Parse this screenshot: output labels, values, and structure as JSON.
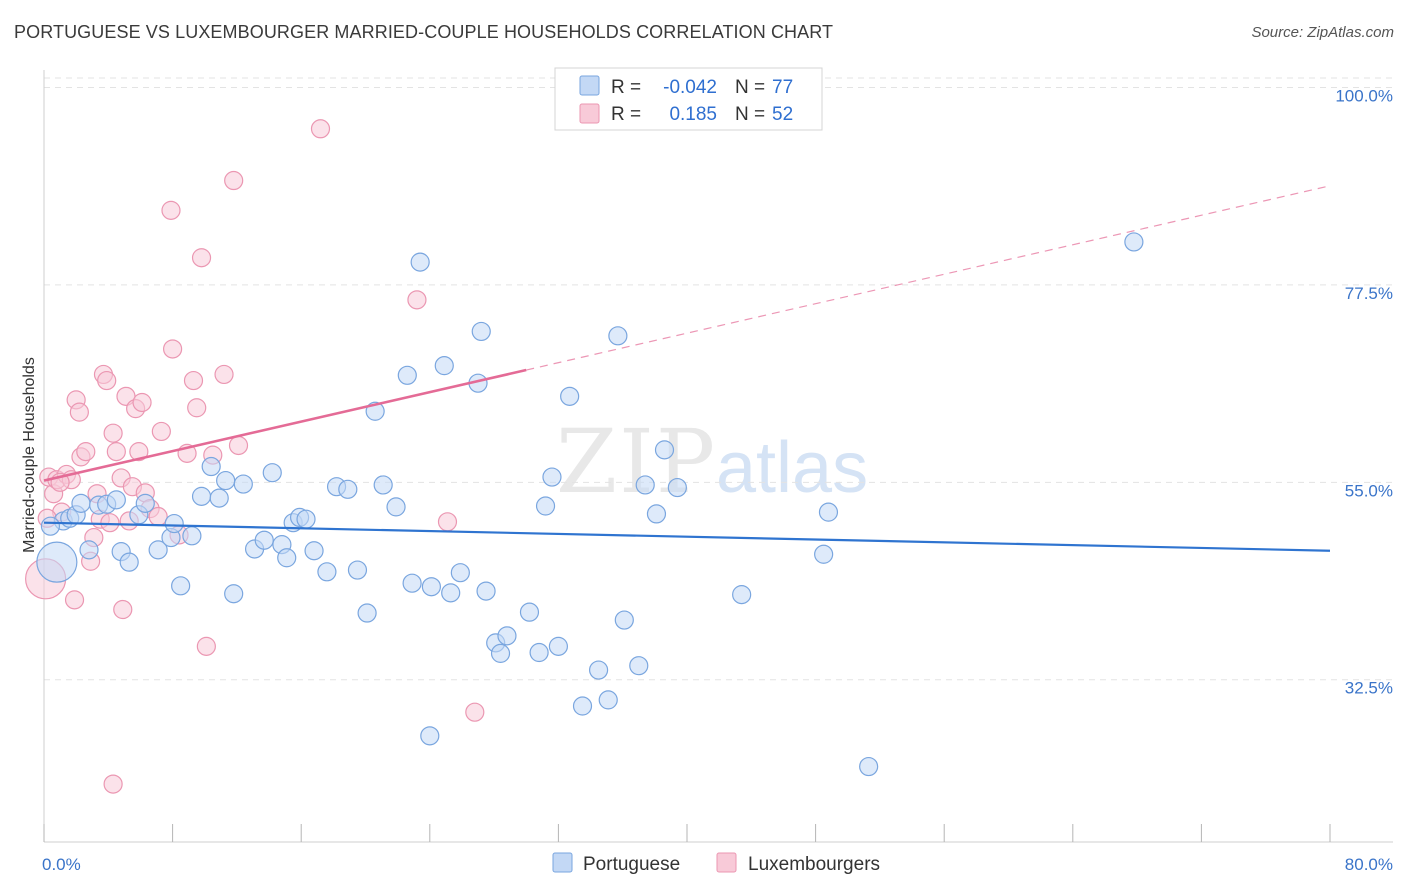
{
  "header": {
    "title": "PORTUGUESE VS LUXEMBOURGER MARRIED-COUPLE HOUSEHOLDS CORRELATION CHART",
    "source": "Source: ZipAtlas.com"
  },
  "watermark": {
    "zip": "ZIP",
    "atlas": "atlas"
  },
  "colors": {
    "portuguese_fill": "#c3d8f5",
    "portuguese_stroke": "#7aa6df",
    "portuguese_line": "#2f74d0",
    "luxembourger_fill": "#f8cad8",
    "luxembourger_stroke": "#eb97b2",
    "luxembourger_line": "#e46b96",
    "axis_label": "#3a74c9",
    "grid": "#e3e3e3"
  },
  "legend": {
    "r_label": "R =",
    "n_label": "N =",
    "rows": [
      {
        "series": "Portuguese",
        "r": "-0.042",
        "n": "77"
      },
      {
        "series": "Luxembourgers",
        "r": "0.185",
        "n": "52"
      }
    ]
  },
  "chart_data": {
    "type": "scatter",
    "title": "PORTUGUESE VS LUXEMBOURGER MARRIED-COUPLE HOUSEHOLDS CORRELATION CHART",
    "xlabel": "",
    "ylabel": "Married-couple Households",
    "xlim": [
      0,
      80
    ],
    "ylim": [
      14,
      102
    ],
    "x_tick_labels": [
      "0.0%",
      "80.0%"
    ],
    "y_ticks": [
      32.5,
      55.0,
      77.5,
      100.0
    ],
    "y_tick_labels": [
      "32.5%",
      "55.0%",
      "77.5%",
      "100.0%"
    ],
    "grid": true,
    "legend_position": "top-center",
    "series": [
      {
        "name": "Portuguese",
        "trend": {
          "x": [
            0,
            80
          ],
          "y": [
            50.4,
            47.2
          ],
          "style": "solid"
        },
        "points": [
          [
            0.8,
            45.9
          ],
          [
            1.2,
            50.6
          ],
          [
            1.6,
            50.9
          ],
          [
            2.0,
            51.3
          ],
          [
            2.3,
            52.6
          ],
          [
            2.8,
            47.3
          ],
          [
            3.4,
            52.4
          ],
          [
            3.9,
            52.5
          ],
          [
            4.5,
            53.0
          ],
          [
            4.8,
            47.1
          ],
          [
            5.3,
            45.9
          ],
          [
            5.9,
            51.3
          ],
          [
            6.3,
            52.6
          ],
          [
            7.1,
            47.3
          ],
          [
            7.9,
            48.7
          ],
          [
            8.1,
            50.3
          ],
          [
            8.5,
            43.2
          ],
          [
            9.2,
            48.9
          ],
          [
            9.8,
            53.4
          ],
          [
            10.4,
            56.8
          ],
          [
            10.9,
            53.2
          ],
          [
            11.3,
            55.2
          ],
          [
            11.8,
            42.3
          ],
          [
            12.4,
            54.8
          ],
          [
            13.1,
            47.4
          ],
          [
            13.7,
            48.4
          ],
          [
            14.2,
            56.1
          ],
          [
            14.8,
            47.9
          ],
          [
            15.1,
            46.4
          ],
          [
            15.5,
            50.4
          ],
          [
            15.9,
            51.0
          ],
          [
            16.3,
            50.8
          ],
          [
            16.8,
            47.2
          ],
          [
            17.6,
            44.8
          ],
          [
            18.2,
            54.5
          ],
          [
            18.9,
            54.2
          ],
          [
            19.5,
            45.0
          ],
          [
            20.1,
            40.1
          ],
          [
            20.6,
            63.1
          ],
          [
            21.1,
            54.7
          ],
          [
            21.9,
            52.2
          ],
          [
            22.6,
            67.2
          ],
          [
            22.9,
            43.5
          ],
          [
            23.4,
            80.1
          ],
          [
            24.1,
            43.1
          ],
          [
            24.9,
            68.3
          ],
          [
            25.3,
            42.4
          ],
          [
            25.9,
            44.7
          ],
          [
            27.0,
            66.3
          ],
          [
            27.2,
            72.2
          ],
          [
            27.5,
            42.6
          ],
          [
            28.1,
            36.7
          ],
          [
            28.4,
            35.5
          ],
          [
            28.8,
            37.5
          ],
          [
            30.2,
            40.2
          ],
          [
            30.8,
            35.6
          ],
          [
            31.2,
            52.3
          ],
          [
            31.6,
            55.6
          ],
          [
            32.0,
            36.3
          ],
          [
            32.7,
            64.8
          ],
          [
            33.5,
            29.5
          ],
          [
            34.5,
            33.6
          ],
          [
            35.1,
            30.2
          ],
          [
            35.7,
            71.7
          ],
          [
            36.1,
            39.3
          ],
          [
            37.0,
            34.1
          ],
          [
            37.4,
            54.7
          ],
          [
            38.1,
            51.4
          ],
          [
            38.6,
            58.7
          ],
          [
            39.4,
            54.4
          ],
          [
            24.0,
            26.1
          ],
          [
            43.4,
            42.2
          ],
          [
            48.5,
            46.8
          ],
          [
            48.8,
            51.6
          ],
          [
            51.3,
            22.6
          ],
          [
            67.8,
            82.4
          ],
          [
            0.4,
            50.0
          ]
        ]
      },
      {
        "name": "Luxembourgers",
        "trend": {
          "x": [
            0,
            30
          ],
          "y": [
            55.2,
            67.8
          ],
          "style": "solid",
          "extension": {
            "x": [
              30,
              80
            ],
            "y": [
              67.8,
              88.8
            ],
            "style": "dashed"
          }
        },
        "points": [
          [
            0.1,
            44.0
          ],
          [
            0.3,
            55.6
          ],
          [
            0.6,
            53.7
          ],
          [
            0.8,
            55.3
          ],
          [
            1.1,
            51.6
          ],
          [
            1.4,
            55.9
          ],
          [
            1.7,
            55.3
          ],
          [
            1.9,
            41.6
          ],
          [
            2.0,
            64.4
          ],
          [
            2.2,
            63.0
          ],
          [
            2.3,
            57.9
          ],
          [
            2.6,
            58.5
          ],
          [
            2.9,
            46.0
          ],
          [
            3.1,
            48.7
          ],
          [
            3.3,
            53.7
          ],
          [
            3.5,
            50.8
          ],
          [
            3.7,
            67.3
          ],
          [
            3.9,
            66.6
          ],
          [
            4.1,
            50.4
          ],
          [
            4.3,
            60.6
          ],
          [
            4.5,
            58.5
          ],
          [
            4.8,
            55.5
          ],
          [
            4.9,
            40.5
          ],
          [
            5.1,
            64.8
          ],
          [
            5.3,
            50.6
          ],
          [
            5.5,
            54.5
          ],
          [
            5.7,
            63.4
          ],
          [
            5.9,
            58.5
          ],
          [
            6.1,
            64.1
          ],
          [
            6.3,
            53.8
          ],
          [
            6.6,
            52.0
          ],
          [
            7.1,
            51.1
          ],
          [
            7.3,
            60.8
          ],
          [
            7.9,
            86.0
          ],
          [
            8.0,
            70.2
          ],
          [
            8.4,
            49.0
          ],
          [
            8.9,
            58.3
          ],
          [
            9.3,
            66.6
          ],
          [
            9.5,
            63.5
          ],
          [
            9.8,
            80.6
          ],
          [
            10.1,
            36.3
          ],
          [
            10.5,
            58.1
          ],
          [
            11.2,
            67.3
          ],
          [
            11.8,
            89.4
          ],
          [
            12.1,
            59.2
          ],
          [
            17.2,
            95.3
          ],
          [
            23.2,
            75.8
          ],
          [
            25.1,
            50.5
          ],
          [
            26.8,
            28.8
          ],
          [
            4.3,
            20.6
          ],
          [
            0.2,
            50.9
          ],
          [
            1.0,
            55.0
          ]
        ]
      }
    ]
  }
}
